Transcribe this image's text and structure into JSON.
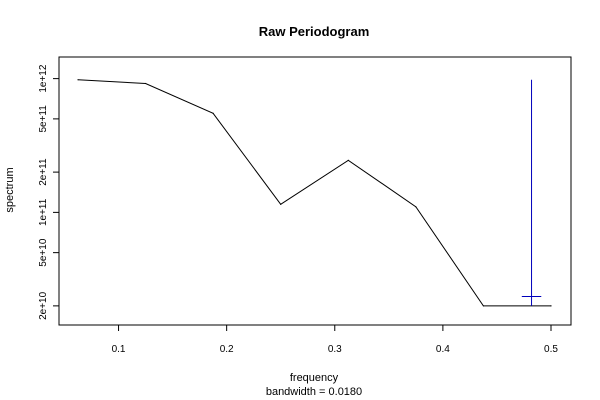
{
  "chart_data": {
    "type": "line",
    "title": "Raw Periodogram",
    "xlabel": "frequency",
    "xsublabel": "bandwidth = 0.0180",
    "ylabel": "spectrum",
    "y_scale": "log",
    "xlim": [
      0.0625,
      0.5
    ],
    "ylim": [
      16800000000,
      1180000000000
    ],
    "x_ticks": [
      {
        "value": 0.1,
        "label": "0.1"
      },
      {
        "value": 0.2,
        "label": "0.2"
      },
      {
        "value": 0.3,
        "label": "0.3"
      },
      {
        "value": 0.4,
        "label": "0.4"
      },
      {
        "value": 0.5,
        "label": "0.5"
      }
    ],
    "y_ticks": [
      {
        "value": 20000000000,
        "label": "2e+10"
      },
      {
        "value": 50000000000,
        "label": "5e+10"
      },
      {
        "value": 100000000000,
        "label": "1e+11"
      },
      {
        "value": 200000000000,
        "label": "2e+11"
      },
      {
        "value": 500000000000,
        "label": "5e+11"
      },
      {
        "value": 1000000000000,
        "label": "1e+12"
      }
    ],
    "series": [
      {
        "x": [
          0.0625,
          0.125,
          0.1875,
          0.25,
          0.3125,
          0.375,
          0.4375,
          0.5
        ],
        "y": [
          980000000000,
          920000000000,
          550000000000,
          115000000000,
          245000000000,
          110000000000,
          20000000000,
          20000000000
        ],
        "color": "#000000"
      }
    ],
    "ci_bar": {
      "x": 0.482,
      "center": 23500000000,
      "upper": 980000000000,
      "lower": 20000000000,
      "half_width": 0.009,
      "color": "#0000bb"
    }
  }
}
